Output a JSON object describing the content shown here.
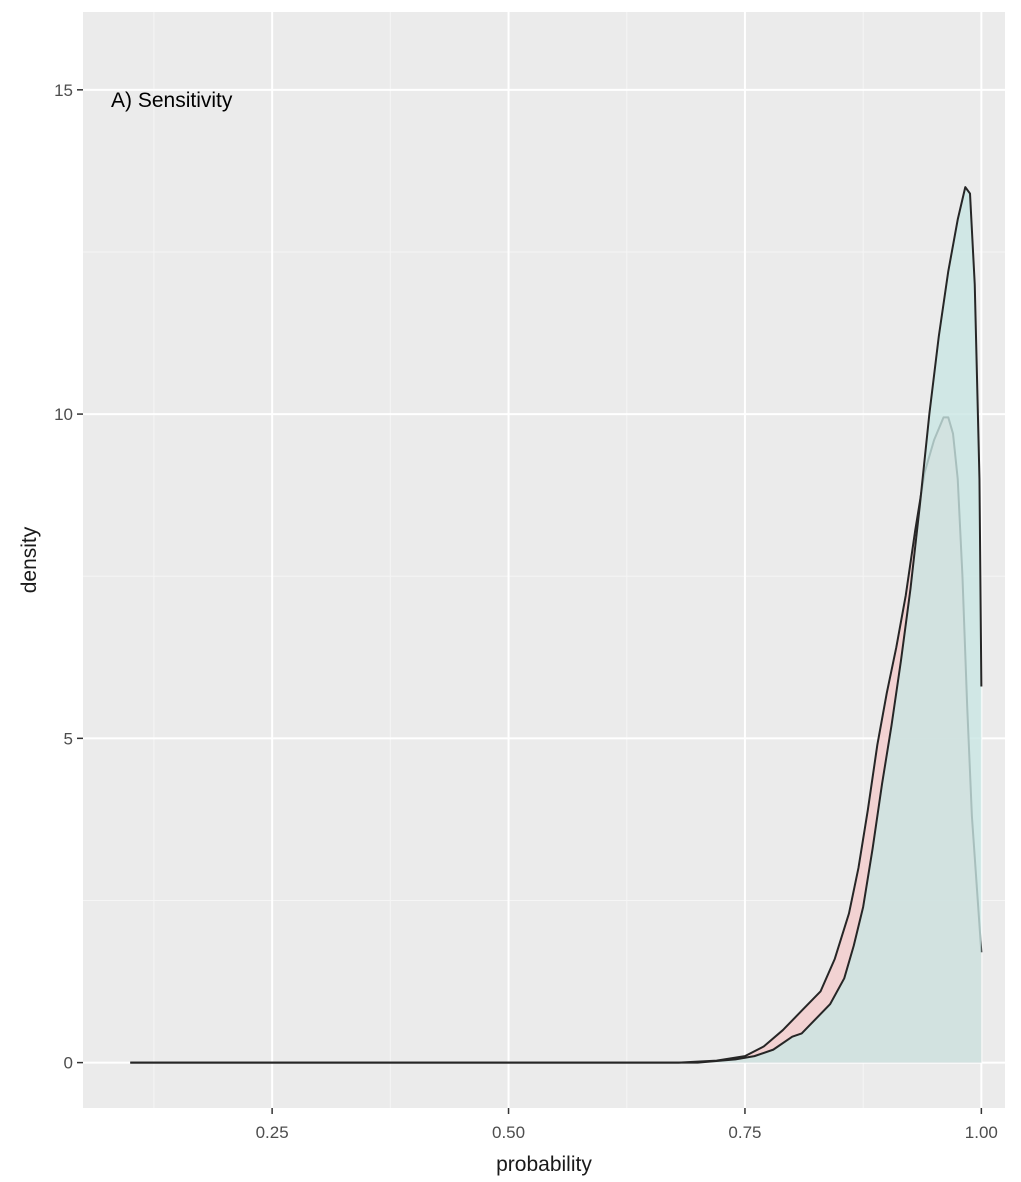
{
  "chart_data": {
    "type": "area",
    "chart_kind": "density",
    "annotation": "A) Sensitivity",
    "xlabel": "probability",
    "ylabel": "density",
    "xlim": [
      0.05,
      1.025
    ],
    "ylim": [
      -0.7,
      16.2
    ],
    "x_ticks": [
      0.25,
      0.5,
      0.75,
      1.0
    ],
    "x_tick_labels": [
      "0.25",
      "0.50",
      "0.75",
      "1.00"
    ],
    "y_ticks": [
      0,
      5,
      10,
      15
    ],
    "y_tick_labels": [
      "0",
      "5",
      "10",
      "15"
    ],
    "grid": true,
    "legend": "none",
    "series": [
      {
        "fill": "#f4cccc",
        "points": [
          [
            0.1,
            0.0
          ],
          [
            0.68,
            0.0
          ],
          [
            0.72,
            0.03
          ],
          [
            0.75,
            0.1
          ],
          [
            0.77,
            0.25
          ],
          [
            0.79,
            0.5
          ],
          [
            0.81,
            0.8
          ],
          [
            0.83,
            1.1
          ],
          [
            0.845,
            1.6
          ],
          [
            0.86,
            2.3
          ],
          [
            0.87,
            3.0
          ],
          [
            0.88,
            3.9
          ],
          [
            0.89,
            4.9
          ],
          [
            0.9,
            5.7
          ],
          [
            0.91,
            6.4
          ],
          [
            0.92,
            7.2
          ],
          [
            0.93,
            8.2
          ],
          [
            0.94,
            9.1
          ],
          [
            0.95,
            9.6
          ],
          [
            0.96,
            9.95
          ],
          [
            0.965,
            9.95
          ],
          [
            0.97,
            9.7
          ],
          [
            0.975,
            9.0
          ],
          [
            0.98,
            7.5
          ],
          [
            0.985,
            5.5
          ],
          [
            0.99,
            3.8
          ],
          [
            1.0,
            1.7
          ]
        ]
      },
      {
        "fill": "#c9e6e3",
        "points": [
          [
            0.1,
            0.0
          ],
          [
            0.7,
            0.0
          ],
          [
            0.74,
            0.05
          ],
          [
            0.76,
            0.1
          ],
          [
            0.78,
            0.2
          ],
          [
            0.8,
            0.4
          ],
          [
            0.81,
            0.45
          ],
          [
            0.82,
            0.6
          ],
          [
            0.84,
            0.9
          ],
          [
            0.855,
            1.3
          ],
          [
            0.865,
            1.8
          ],
          [
            0.875,
            2.4
          ],
          [
            0.885,
            3.3
          ],
          [
            0.895,
            4.3
          ],
          [
            0.905,
            5.2
          ],
          [
            0.915,
            6.2
          ],
          [
            0.925,
            7.3
          ],
          [
            0.935,
            8.6
          ],
          [
            0.945,
            10.0
          ],
          [
            0.955,
            11.2
          ],
          [
            0.965,
            12.2
          ],
          [
            0.975,
            13.0
          ],
          [
            0.983,
            13.5
          ],
          [
            0.988,
            13.4
          ],
          [
            0.993,
            12.0
          ],
          [
            0.998,
            9.0
          ],
          [
            1.0,
            5.8
          ]
        ]
      }
    ]
  }
}
